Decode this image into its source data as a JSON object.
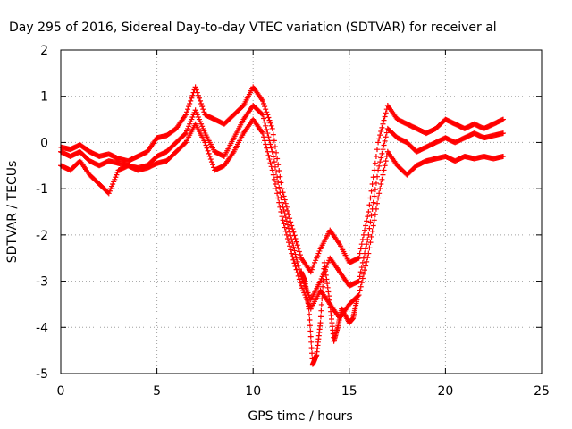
{
  "chart_data": {
    "type": "scatter",
    "title": "Day 295 of 2016, Sidereal Day-to-day VTEC variation (SDTVAR) for receiver al",
    "xlabel": "GPS time / hours",
    "ylabel": "SDTVAR / TECUs",
    "xlim": [
      0,
      25
    ],
    "ylim": [
      -5,
      2
    ],
    "xticks": [
      "0",
      "5",
      "10",
      "15",
      "20",
      "25"
    ],
    "yticks": [
      "2",
      "1",
      "0",
      "-1",
      "-2",
      "-3",
      "-4",
      "-5"
    ],
    "grid": true,
    "marker": "plus",
    "color": "#ff0000",
    "series": [
      {
        "x": [
          0.0,
          0.5,
          1.0,
          1.5,
          2.0,
          2.5,
          3.0,
          3.5,
          4.0,
          4.5,
          5.0,
          5.5,
          6.0,
          6.5,
          7.0,
          7.5,
          8.0,
          8.5,
          9.0,
          9.5,
          10.0,
          10.5,
          11.0,
          11.5,
          12.0,
          12.5,
          13.0,
          13.5,
          14.0,
          14.5,
          15.0,
          15.5,
          16.0,
          16.5,
          17.0,
          17.5,
          18.0,
          18.5,
          19.0,
          19.5,
          20.0,
          20.5,
          21.0,
          21.5,
          22.0,
          22.5,
          23.0
        ],
        "y": [
          -0.1,
          -0.15,
          -0.05,
          -0.2,
          -0.3,
          -0.25,
          -0.35,
          -0.4,
          -0.3,
          -0.2,
          0.1,
          0.15,
          0.3,
          0.6,
          1.2,
          0.6,
          0.5,
          0.4,
          0.6,
          0.8,
          1.2,
          0.9,
          0.3,
          -1.0,
          -1.8,
          -2.5,
          -2.8,
          -2.3,
          -1.9,
          -2.2,
          -2.6,
          -2.5,
          -1.5,
          0.0,
          0.8,
          0.5,
          0.4,
          0.3,
          0.2,
          0.3,
          0.5,
          0.4,
          0.3,
          0.4,
          0.3,
          0.4,
          0.5
        ]
      },
      {
        "x": [
          0.0,
          0.5,
          1.0,
          1.5,
          2.0,
          2.5,
          3.0,
          3.5,
          4.0,
          4.5,
          5.0,
          5.5,
          6.0,
          6.5,
          7.0,
          7.5,
          8.0,
          8.5,
          9.0,
          9.5,
          10.0,
          10.5,
          11.0,
          11.5,
          12.0,
          12.5,
          13.0,
          13.5,
          14.0,
          14.5,
          15.0,
          15.5,
          16.0,
          16.5,
          17.0,
          17.5,
          18.0,
          18.5,
          19.0,
          19.5,
          20.0,
          20.5,
          21.0,
          21.5,
          22.0,
          22.5,
          23.0
        ],
        "y": [
          -0.2,
          -0.3,
          -0.2,
          -0.4,
          -0.5,
          -0.4,
          -0.45,
          -0.5,
          -0.55,
          -0.5,
          -0.3,
          -0.2,
          0.0,
          0.2,
          0.7,
          0.2,
          -0.2,
          -0.3,
          0.1,
          0.5,
          0.8,
          0.6,
          -0.2,
          -1.3,
          -2.1,
          -2.9,
          -3.4,
          -3.0,
          -2.5,
          -2.8,
          -3.1,
          -3.0,
          -2.0,
          -0.6,
          0.3,
          0.1,
          0.0,
          -0.2,
          -0.1,
          0.0,
          0.1,
          0.0,
          0.1,
          0.2,
          0.1,
          0.15,
          0.2
        ]
      },
      {
        "x": [
          0.0,
          0.5,
          1.0,
          1.5,
          2.0,
          2.5,
          3.0,
          3.5,
          4.0,
          4.5,
          5.0,
          5.5,
          6.0,
          6.5,
          7.0,
          7.5,
          8.0,
          8.5,
          9.0,
          9.5,
          10.0,
          10.5,
          11.0,
          11.5,
          12.0,
          12.5,
          13.0,
          13.5,
          14.0,
          14.5,
          15.0,
          15.5,
          16.0,
          16.5,
          17.0,
          17.5,
          18.0,
          18.5,
          19.0,
          19.5,
          20.0,
          20.5,
          21.0,
          21.5,
          22.0,
          22.5,
          23.0
        ],
        "y": [
          -0.5,
          -0.6,
          -0.4,
          -0.7,
          -0.9,
          -1.1,
          -0.6,
          -0.5,
          -0.6,
          -0.55,
          -0.45,
          -0.4,
          -0.2,
          0.0,
          0.4,
          0.0,
          -0.6,
          -0.5,
          -0.2,
          0.2,
          0.5,
          0.2,
          -0.6,
          -1.6,
          -2.4,
          -3.1,
          -3.6,
          -3.2,
          -3.5,
          -3.8,
          -3.5,
          -3.3,
          -2.4,
          -1.2,
          -0.2,
          -0.5,
          -0.7,
          -0.5,
          -0.4,
          -0.35,
          -0.3,
          -0.4,
          -0.3,
          -0.35,
          -0.3,
          -0.35,
          -0.3
        ]
      },
      {
        "x": [
          12.5,
          12.7,
          12.9,
          13.1,
          13.3,
          13.5,
          13.7,
          14.0,
          14.2,
          14.4,
          14.6,
          15.0,
          15.2,
          15.4
        ],
        "y": [
          -2.8,
          -3.0,
          -3.6,
          -4.8,
          -4.6,
          -3.9,
          -2.6,
          -3.5,
          -4.3,
          -4.0,
          -3.6,
          -3.9,
          -3.8,
          -3.4
        ]
      }
    ]
  }
}
